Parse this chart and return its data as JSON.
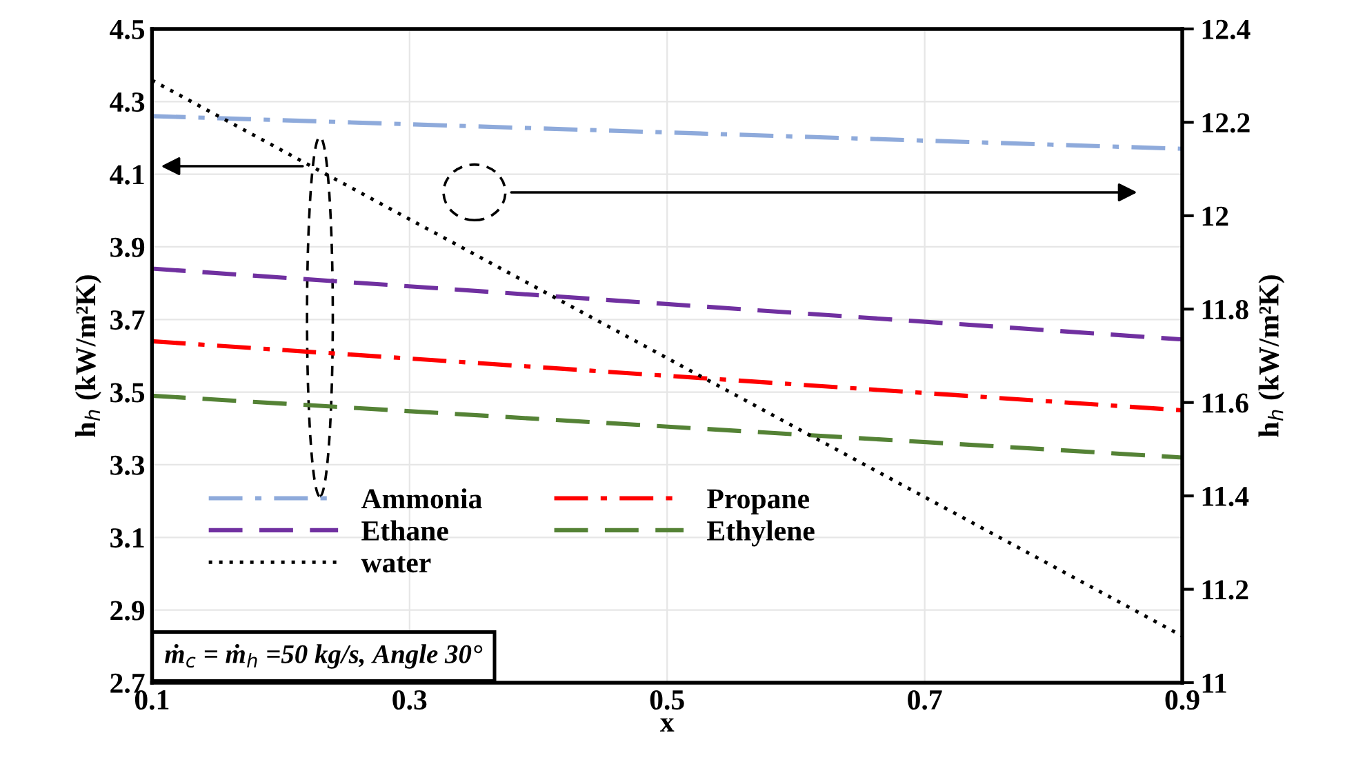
{
  "chart_data": {
    "type": "line",
    "xlabel": "x",
    "ylabel": "h$_{h}$ (kW/m²K)",
    "y2label": "h$_{h}$ (kW/m²K)",
    "x": [
      0.1,
      0.9
    ],
    "series": [
      {
        "name": "Ammonia",
        "color": "#8eaadb",
        "values": [
          4.26,
          4.17
        ],
        "line_style": "dashdot"
      },
      {
        "name": "Propane",
        "color": "#ff0000",
        "values": [
          3.64,
          3.45
        ],
        "line_style": "dashdot"
      },
      {
        "name": "Ethane",
        "color": "#7030a0",
        "values": [
          3.84,
          3.645
        ],
        "line_style": "dashed"
      },
      {
        "name": "Ethylene",
        "color": "#548235",
        "values": [
          3.49,
          3.32
        ],
        "line_style": "dashed"
      },
      {
        "name": "water",
        "color": "#000000",
        "values": [
          12.29,
          11.1
        ],
        "line_style": "dotted",
        "axis": "y2"
      }
    ],
    "xlim": [
      0.1,
      0.9
    ],
    "xticks": [
      0.1,
      0.3,
      0.5,
      0.7,
      0.9
    ],
    "ylim": [
      2.7,
      4.5
    ],
    "yticks": [
      2.7,
      2.9,
      3.1,
      3.3,
      3.5,
      3.7,
      3.9,
      4.1,
      4.3,
      4.5
    ],
    "y2lim": [
      11,
      12.4
    ],
    "y2ticks": [
      11,
      11.2,
      11.4,
      11.6,
      11.8,
      12,
      12.2,
      12.4
    ],
    "grid": true,
    "legend": "bottom left",
    "marker": "none",
    "annotations": [
      "ṁ$_{c}$ = ṁ$_{h}$ =50 kg/s, Angle 30°"
    ]
  }
}
